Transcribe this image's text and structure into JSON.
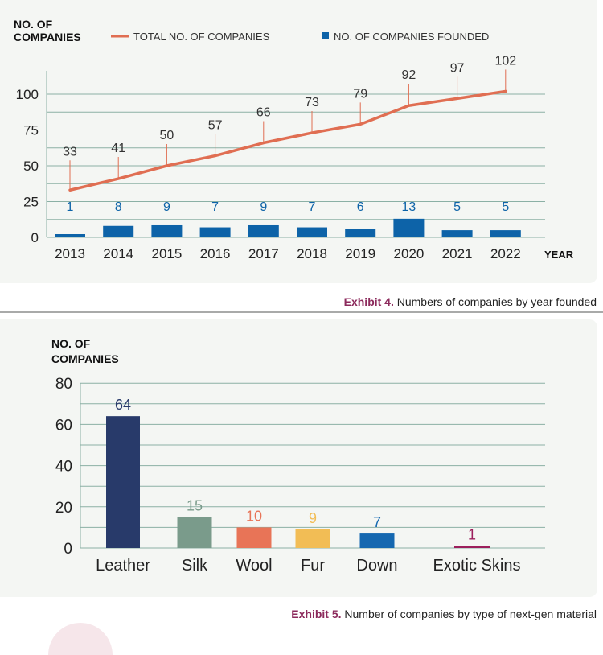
{
  "exhibit4": {
    "caption_label": "Exhibit 4.",
    "caption_text": "Numbers of companies by year founded",
    "ylabel_line1": "NO. OF",
    "ylabel_line2": "COMPANIES",
    "xlabel": "YEAR",
    "colors": {
      "line": "#e06e52",
      "bar": "#0d63a8",
      "grid": "#8bb0a5"
    }
  },
  "exhibit5": {
    "caption_label": "Exhibit 5.",
    "caption_text": "Number of companies by type of next-gen material",
    "ylabel_line1": "NO. OF",
    "ylabel_line2": "COMPANIES",
    "colors": {
      "grid": "#8bb0a5"
    }
  },
  "chart_data": [
    {
      "type": "bar+line",
      "categories": [
        "2013",
        "2014",
        "2015",
        "2016",
        "2017",
        "2018",
        "2019",
        "2020",
        "2021",
        "2022"
      ],
      "series": [
        {
          "name": "TOTAL NO. OF COMPANIES",
          "type": "line",
          "values": [
            33,
            41,
            50,
            57,
            66,
            73,
            79,
            92,
            97,
            102
          ],
          "color": "#e06e52"
        },
        {
          "name": "NO. OF COMPANIES FOUNDED",
          "type": "bar",
          "values": [
            1,
            8,
            9,
            7,
            9,
            7,
            6,
            13,
            5,
            5
          ],
          "color": "#0d63a8"
        }
      ],
      "yticks": [
        0,
        25,
        50,
        75,
        100
      ],
      "ylim": [
        0,
        110
      ],
      "legend": "top",
      "grid": true
    },
    {
      "type": "bar",
      "categories": [
        "Leather",
        "Silk",
        "Wool",
        "Fur",
        "Down",
        "Exotic Skins"
      ],
      "values": [
        64,
        15,
        10,
        9,
        7,
        1
      ],
      "colors": [
        "#283a6a",
        "#7a9b8b",
        "#e87457",
        "#f2bd55",
        "#1568b0",
        "#9c1f5c"
      ],
      "yticks": [
        0,
        20,
        40,
        60,
        80
      ],
      "ylim": [
        0,
        80
      ],
      "grid": true
    }
  ]
}
